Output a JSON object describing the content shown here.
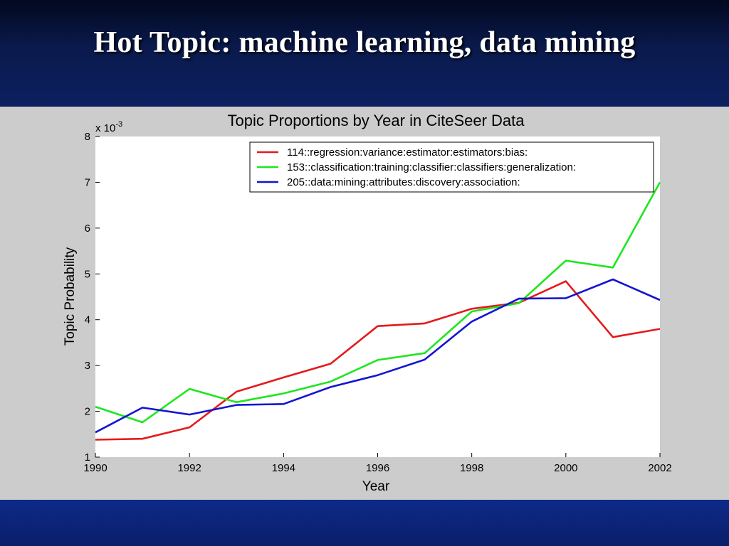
{
  "slide": {
    "title": "Hot Topic: machine learning, data mining"
  },
  "colors": {
    "header_bg": "#0a1a4d",
    "figure_bg": "#cccccc",
    "plot_bg": "#ffffff",
    "footer_bg": "#0d2a88"
  },
  "chart_data": {
    "type": "line",
    "title": "Topic Proportions by Year in CiteSeer Data",
    "xlabel": "Year",
    "ylabel": "Topic Probability",
    "y_multiplier_label": "x 10",
    "y_multiplier_exponent": "-3",
    "xlim": [
      1990,
      2002
    ],
    "ylim": [
      1,
      8
    ],
    "x_ticks": [
      1990,
      1992,
      1994,
      1996,
      1998,
      2000,
      2002
    ],
    "y_ticks": [
      1,
      2,
      3,
      4,
      5,
      6,
      7,
      8
    ],
    "grid": false,
    "legend_position": "top-right",
    "x": [
      1990,
      1991,
      1992,
      1993,
      1994,
      1995,
      1996,
      1997,
      1998,
      1999,
      2000,
      2001,
      2002
    ],
    "series": [
      {
        "name": "114::regression:variance:estimator:estimators:bias:",
        "color": "#e41a1c",
        "values": [
          1.38,
          1.4,
          1.65,
          2.43,
          2.74,
          3.04,
          3.86,
          3.92,
          4.24,
          4.37,
          4.84,
          3.62,
          3.8
        ]
      },
      {
        "name": "153::classification:training:classifier:classifiers:generalization:",
        "color": "#1ee61e",
        "values": [
          2.1,
          1.76,
          2.49,
          2.2,
          2.39,
          2.65,
          3.12,
          3.27,
          4.18,
          4.36,
          5.29,
          5.14,
          7.0
        ]
      },
      {
        "name": "205::data:mining:attributes:discovery:association:",
        "color": "#1414d2",
        "values": [
          1.54,
          2.08,
          1.93,
          2.14,
          2.16,
          2.53,
          2.79,
          3.13,
          3.96,
          4.46,
          4.47,
          4.88,
          4.43
        ]
      }
    ]
  }
}
